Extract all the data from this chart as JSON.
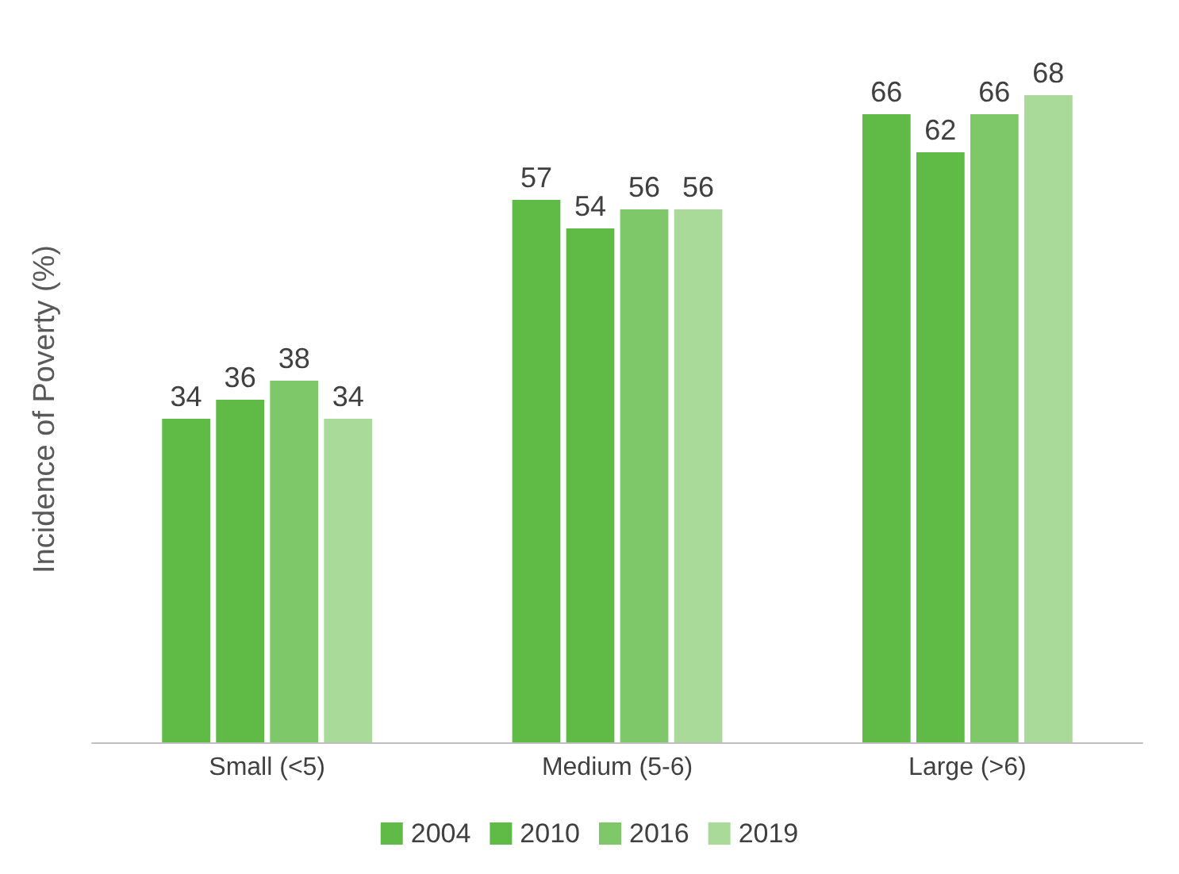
{
  "chart_data": {
    "type": "bar",
    "ylabel": "Incidence of Poverty (%)",
    "categories": [
      "Small (<5)",
      "Medium (5-6)",
      "Large (>6)"
    ],
    "series": [
      {
        "name": "2004",
        "color": "#5fba46",
        "values": [
          34,
          57,
          66
        ]
      },
      {
        "name": "2010",
        "color": "#5fba46",
        "values": [
          36,
          54,
          62
        ]
      },
      {
        "name": "2016",
        "color": "#7fc86a",
        "values": [
          38,
          56,
          66
        ]
      },
      {
        "name": "2019",
        "color": "#a9da9a",
        "values": [
          34,
          56,
          68
        ]
      }
    ],
    "data_labels": true,
    "grid": false,
    "legend": "bottom"
  }
}
